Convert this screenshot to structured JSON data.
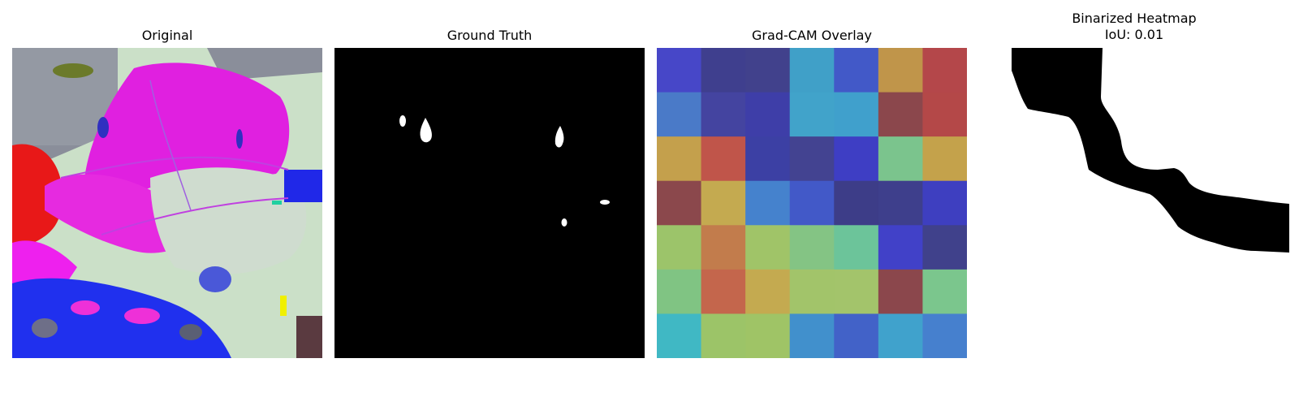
{
  "panels": {
    "original": {
      "title": "Original"
    },
    "ground_truth": {
      "title": "Ground Truth"
    },
    "gradcam": {
      "title": "Grad-CAM Overlay"
    },
    "binarized": {
      "title_line1": "Binarized Heatmap",
      "title_line2": "IoU: 0.01"
    }
  },
  "gradcam_grid": {
    "rows": 7,
    "cols": 7,
    "colors": [
      [
        "#4747c8",
        "#3f3f8e",
        "#41418c",
        "#40a0c8",
        "#4259c8",
        "#c0954a",
        "#b4474a"
      ],
      [
        "#4a7ac8",
        "#4444a0",
        "#3e3ea8",
        "#41a3ca",
        "#40a0cc",
        "#8b474c",
        "#b44848"
      ],
      [
        "#c4a04c",
        "#c0554a",
        "#3c40a4",
        "#434391",
        "#3e3ec4",
        "#7bc48d",
        "#c4a24b"
      ],
      [
        "#8b484c",
        "#c4aa50",
        "#4582cd",
        "#4259c8",
        "#3d3d88",
        "#3e3f8c",
        "#3e3fc0"
      ],
      [
        "#9cc46a",
        "#c27c4c",
        "#a0c468",
        "#84c484",
        "#6cc49a",
        "#4141c8",
        "#40418b"
      ],
      [
        "#80c483",
        "#c4664c",
        "#c4aa50",
        "#a2c46a",
        "#a3c46b",
        "#8b474c",
        "#7bc68d"
      ],
      [
        "#40b8c4",
        "#9cc468",
        "#9fc466",
        "#4190cc",
        "#4262c8",
        "#40a2cc",
        "#4680ce"
      ]
    ]
  },
  "colors": {
    "mask_background": "#000000",
    "mask_foreground": "#ffffff",
    "heatmap_fill": "#000000"
  }
}
